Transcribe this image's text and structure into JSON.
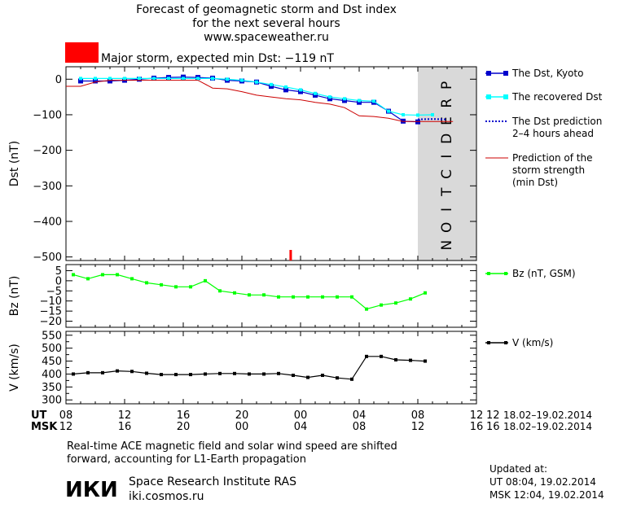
{
  "title": [
    "Forecast of geomagnetic storm and Dst index",
    "for the next several hours",
    "www.spaceweather.ru"
  ],
  "alert": {
    "text": "Major storm, expected min Dst: −119 nT",
    "color": "#ff0000"
  },
  "prediction_label": "PREDICTION",
  "footer": {
    "note_lines": [
      "Real-time ACE magnetic field and solar wind speed are shifted",
      "forward, accounting for L1-Earth propagation"
    ],
    "institute": "Space Research Institute RAS",
    "site": "iki.cosmos.ru",
    "logo": "ИКИ",
    "updated_title": "Updated at:",
    "updated_ut": "UT   08:04, 19.02.2014",
    "updated_msk": "MSK 12:04, 19.02.2014"
  },
  "time_axis": {
    "ut_label": "UT",
    "msk_label": "MSK",
    "ut_ticks": [
      "08",
      "12",
      "16",
      "20",
      "00",
      "04",
      "08",
      "12"
    ],
    "msk_ticks": [
      "12",
      "16",
      "20",
      "00",
      "04",
      "08",
      "12",
      "16"
    ],
    "ut_range": "18.02–19.02.2014",
    "msk_range": "18.02–19.02.2014"
  },
  "colors": {
    "dst": "#0000cc",
    "recovered": "#00ffff",
    "prediction_dotted": "#0000cc",
    "min_dst": "#cc0000",
    "bz": "#00ff00",
    "v": "#000000",
    "band": "#d9d9d9"
  },
  "chart_data": [
    {
      "type": "line",
      "ylabel": "Dst (nT)",
      "ylim": [
        -510,
        35
      ],
      "yticks": [
        0,
        -100,
        -200,
        -300,
        -400,
        -500
      ],
      "ytick_labels": [
        "0",
        "−100",
        "−200",
        "−300",
        "−400",
        "−500"
      ],
      "xlim_hours_since_0800_UT_18Feb": [
        0,
        24
      ],
      "prediction_from": 24,
      "storm_marker_x": 15.3,
      "series": [
        {
          "name": "The Dst, Kyoto",
          "x": [
            1,
            2,
            3,
            4,
            5,
            6,
            7,
            8,
            9,
            10,
            11,
            12,
            13,
            14,
            15,
            16,
            17,
            18,
            19,
            20,
            21,
            22,
            23,
            24
          ],
          "y": [
            -5,
            -5,
            -5,
            -3,
            0,
            3,
            5,
            6,
            5,
            3,
            -3,
            -5,
            -8,
            -20,
            -30,
            -35,
            -45,
            -55,
            -60,
            -65,
            -65,
            -90,
            -118,
            -120
          ]
        },
        {
          "name": "The recovered Dst",
          "x": [
            1,
            2,
            3,
            4,
            5,
            6,
            7,
            8,
            9,
            10,
            11,
            12,
            13,
            14,
            15,
            16,
            17,
            18,
            19,
            20,
            21,
            22,
            23,
            24,
            25
          ],
          "y": [
            2,
            2,
            2,
            2,
            2,
            2,
            2,
            2,
            2,
            2,
            0,
            -3,
            -8,
            -15,
            -22,
            -30,
            -40,
            -50,
            -55,
            -60,
            -62,
            -90,
            -100,
            -101,
            -100
          ]
        },
        {
          "name": "The Dst prediction 2–4 hours ahead",
          "x": [
            24,
            25,
            25.9
          ],
          "y": [
            -113,
            -112,
            -113
          ]
        },
        {
          "name": "Prediction of the storm strength (min Dst)",
          "x": [
            0,
            1,
            2,
            3,
            4,
            5,
            6,
            7,
            8,
            9,
            10,
            11,
            12,
            13,
            14,
            15,
            16,
            17,
            18,
            19,
            20,
            21,
            22,
            23,
            24,
            26.4
          ],
          "y": [
            -20,
            -20,
            -8,
            -3,
            -3,
            -3,
            -3,
            -3,
            -3,
            -3,
            -25,
            -27,
            -35,
            -45,
            -50,
            -55,
            -58,
            -65,
            -70,
            -80,
            -103,
            -105,
            -110,
            -119,
            -119,
            -119
          ]
        }
      ]
    },
    {
      "type": "line",
      "ylabel": "Bz (nT)",
      "ylim": [
        -23,
        8
      ],
      "yticks": [
        5,
        0,
        -5,
        -10,
        -15,
        -20
      ],
      "ytick_labels": [
        "5",
        "0",
        "−5",
        "−10",
        "−15",
        "−20"
      ],
      "series": [
        {
          "name": "Bz (nT, GSM)",
          "x": [
            0.5,
            1.5,
            2.5,
            3.5,
            4.5,
            5.5,
            6.5,
            7.5,
            8.5,
            9.5,
            10.5,
            11.5,
            12.5,
            13.5,
            14.5,
            15.5,
            16.5,
            17.5,
            18.5,
            19.5,
            20.5,
            21.5,
            22.5,
            23.5,
            24.5
          ],
          "y": [
            3,
            1,
            3,
            3,
            1,
            -1,
            -2,
            -3,
            -3,
            0,
            -5,
            -6,
            -7,
            -7,
            -8,
            -8,
            -8,
            -8,
            -8,
            -8,
            -14,
            -12,
            -11,
            -9,
            -6
          ]
        }
      ]
    },
    {
      "type": "line",
      "ylabel": "V (km/s)",
      "ylim": [
        285,
        565
      ],
      "yticks": [
        550,
        500,
        450,
        400,
        350,
        300
      ],
      "ytick_labels": [
        "550",
        "500",
        "450",
        "400",
        "350",
        "300"
      ],
      "minor_yticks": [
        525,
        475,
        425,
        375,
        325
      ],
      "series": [
        {
          "name": "V (km/s)",
          "x": [
            0.5,
            1.5,
            2.5,
            3.5,
            4.5,
            5.5,
            6.5,
            7.5,
            8.5,
            9.5,
            10.5,
            11.5,
            12.5,
            13.5,
            14.5,
            15.5,
            16.5,
            17.5,
            18.5,
            19.5,
            20.5,
            21.5,
            22.5,
            23.5,
            24.5
          ],
          "y": [
            400,
            405,
            405,
            412,
            410,
            403,
            398,
            398,
            398,
            400,
            402,
            402,
            400,
            400,
            402,
            395,
            387,
            395,
            385,
            380,
            468,
            468,
            455,
            453,
            450
          ]
        }
      ]
    }
  ]
}
